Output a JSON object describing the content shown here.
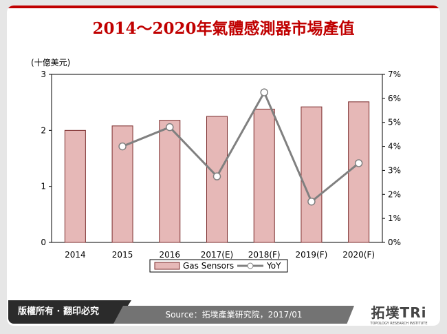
{
  "title": "2014～2020年氣體感測器市場產值",
  "footer": {
    "copyright": "版權所有 · 翻印必究",
    "source": "Source：拓墣產業研究院，2017/01",
    "logo_text": "拓墣TRi",
    "logo_sub": "TOPOLOGY RESEARCH INSTITUTE"
  },
  "chart_data": {
    "type": "bar+line",
    "title": "2014～2020年氣體感測器市場產值",
    "ylabel": "(十億美元)",
    "categories": [
      "2014",
      "2015",
      "2016",
      "2017(E)",
      "2018(F)",
      "2019(F)",
      "2020(F)"
    ],
    "y_left": {
      "lim": [
        0,
        3
      ],
      "ticks": [
        "0",
        "1",
        "2",
        "3"
      ]
    },
    "y_right": {
      "lim": [
        0,
        7
      ],
      "ticks": [
        "0%",
        "1%",
        "2%",
        "3%",
        "4%",
        "5%",
        "6%",
        "7%"
      ]
    },
    "series": [
      {
        "name": "Gas Sensors",
        "type": "bar",
        "axis": "left",
        "values": [
          2.0,
          2.08,
          2.18,
          2.25,
          2.38,
          2.42,
          2.51
        ],
        "color": "#e6b8b7",
        "edge": "#7b2c2c"
      },
      {
        "name": "YoY",
        "type": "line",
        "axis": "right",
        "values": [
          null,
          4.0,
          4.8,
          2.75,
          6.25,
          1.7,
          3.3
        ],
        "color": "#808080"
      }
    ],
    "legend": "bottom"
  }
}
